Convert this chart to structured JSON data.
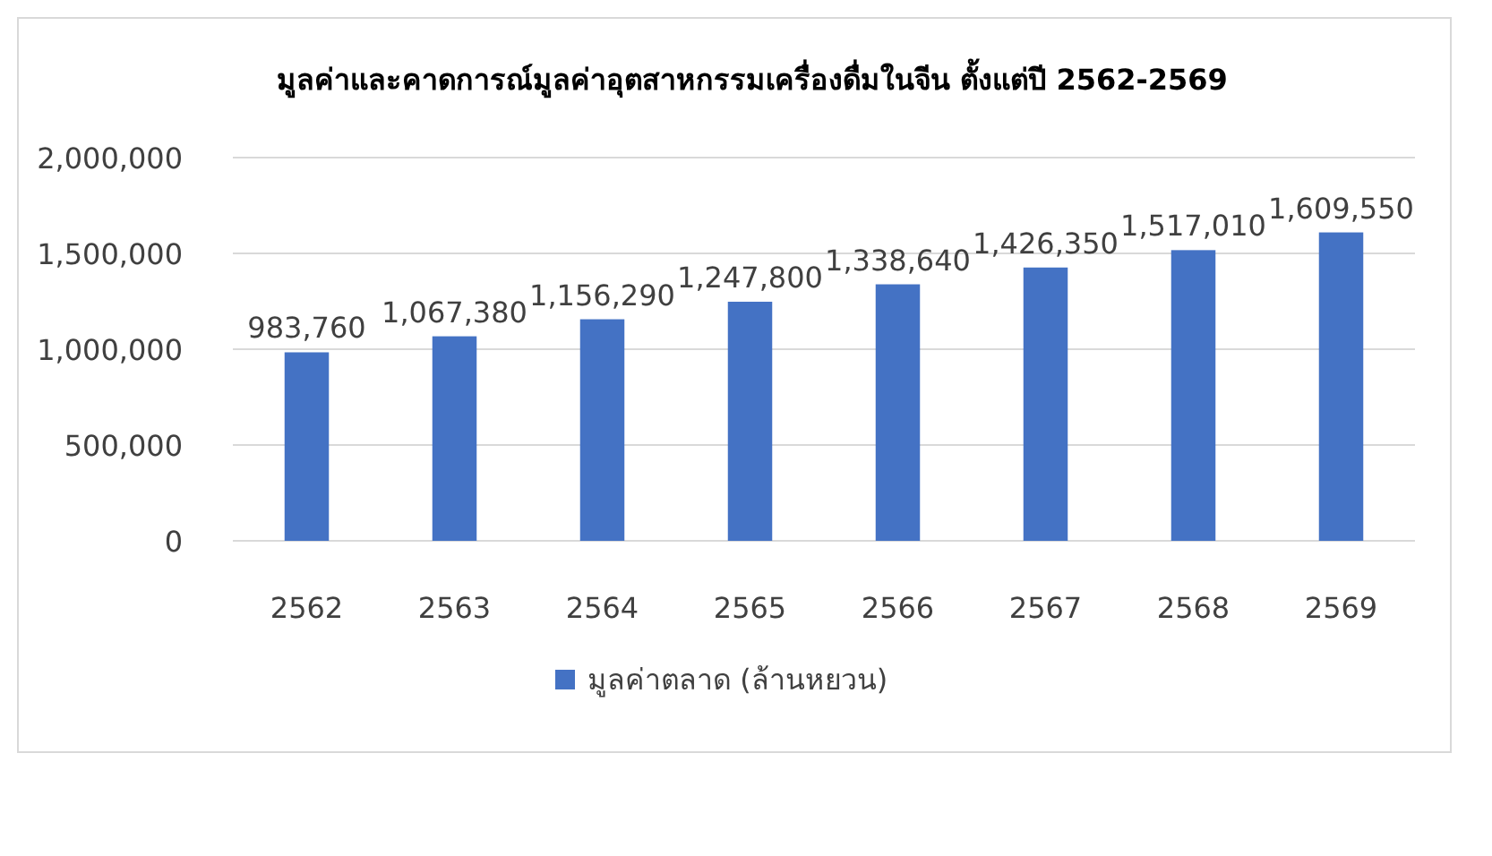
{
  "chart_data": {
    "type": "bar",
    "title": "มูลค่าและคาดการณ์มูลค่าอุตสาหกรรมเครื่องดื่มในจีน ตั้งแต่ปี 2562-2569",
    "categories": [
      "2562",
      "2563",
      "2564",
      "2565",
      "2566",
      "2567",
      "2568",
      "2569"
    ],
    "series": [
      {
        "name": "มูลค่าตลาด (ล้านหยวน)",
        "color": "#4472c4",
        "values": [
          983760,
          1067380,
          1156290,
          1247800,
          1338640,
          1426350,
          1517010,
          1609550
        ]
      }
    ],
    "value_labels": [
      "983,760",
      "1,067,380",
      "1,156,290",
      "1,247,800",
      "1,338,640",
      "1,426,350",
      "1,517,010",
      "1,609,550"
    ],
    "ylim": [
      0,
      2000000
    ],
    "yticks": [
      {
        "value": 0,
        "label": "0"
      },
      {
        "value": 500000,
        "label": "500,000"
      },
      {
        "value": 1000000,
        "label": "1,000,000"
      },
      {
        "value": 1500000,
        "label": "1,500,000"
      },
      {
        "value": 2000000,
        "label": "2,000,000"
      }
    ],
    "grid": "y",
    "legend": "bottom"
  }
}
